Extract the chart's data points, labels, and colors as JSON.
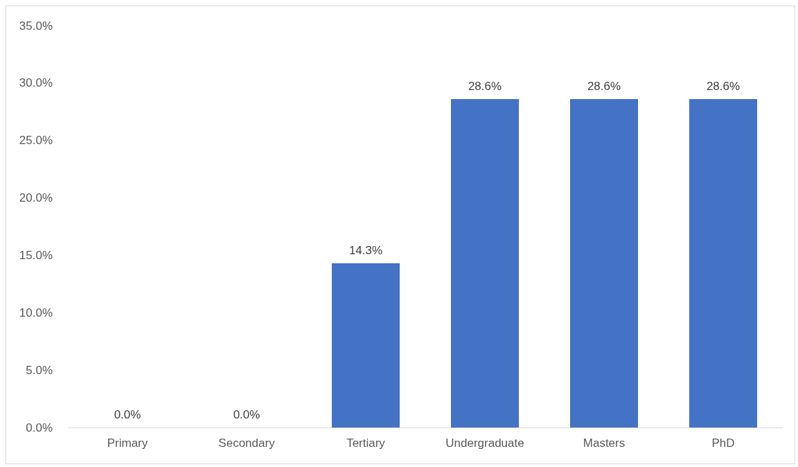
{
  "chart_data": {
    "type": "bar",
    "categories": [
      "Primary",
      "Secondary",
      "Tertiary",
      "Undergraduate",
      "Masters",
      "PhD"
    ],
    "values": [
      0,
      0,
      14.3,
      28.6,
      28.6,
      28.6
    ],
    "value_labels": [
      "0.0%",
      "0.0%",
      "14.3%",
      "28.6%",
      "28.6%",
      "28.6%"
    ],
    "color": "#4472c4",
    "ylim": [
      0,
      35
    ],
    "yticks": [
      {
        "value": 0,
        "label": "0.0%"
      },
      {
        "value": 5,
        "label": "5.0%"
      },
      {
        "value": 10,
        "label": "10.0%"
      },
      {
        "value": 15,
        "label": "15.0%"
      },
      {
        "value": 20,
        "label": "20.0%"
      },
      {
        "value": 25,
        "label": "25.0%"
      },
      {
        "value": 30,
        "label": "30.0%"
      },
      {
        "value": 35,
        "label": "35.0%"
      }
    ],
    "grid": false
  }
}
